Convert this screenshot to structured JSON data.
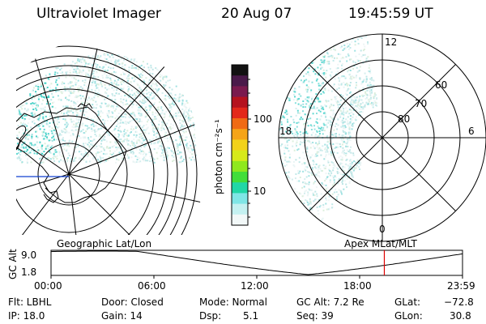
{
  "header": {
    "instrument": "Ultraviolet Imager",
    "date": "20 Aug 07",
    "time": "19:45:59 UT"
  },
  "left_panel": {
    "caption": "Geographic Lat/Lon"
  },
  "right_panel": {
    "caption": "Apex MLat/MLT",
    "mlt_labels": {
      "top": "12",
      "left": "18",
      "right": "6",
      "bottom": "0"
    },
    "lat_labels": [
      "60",
      "70",
      "80"
    ]
  },
  "colorbar": {
    "unit_label": "photon cm⁻²s⁻¹",
    "ticks": [
      "100",
      "10"
    ],
    "colors": [
      "#121212",
      "#4a1a4a",
      "#7a1a4e",
      "#b5121e",
      "#e3281a",
      "#f06a14",
      "#f5a418",
      "#f2d21a",
      "#d7ea1a",
      "#8fe81e",
      "#42de3a",
      "#22d7a6",
      "#7fe6e6",
      "#c4f1f1",
      "#f2f8f8"
    ]
  },
  "timeline": {
    "axis_label": "GC Alt",
    "y_top": "9.0",
    "y_bottom": "1.8",
    "x_ticks": [
      "00:00",
      "06:00",
      "12:00",
      "18:00",
      "23:59"
    ],
    "current_time_fraction": 0.81,
    "marker_color": "#dd0000"
  },
  "info": {
    "filter": "Flt: LBHL",
    "ip": "IP: 18.0",
    "door": "Door: Closed",
    "gain": "Gain: 14",
    "mode": "Mode: Normal",
    "dsp_label": "Dsp:",
    "dsp_value": "5.1",
    "gc_alt": "GC Alt: 7.2 Re",
    "seq": "Seq: 39",
    "glat_label": "GLat:",
    "glat_value": "−72.8",
    "glon_label": "GLon:",
    "glon_value": "30.8"
  }
}
